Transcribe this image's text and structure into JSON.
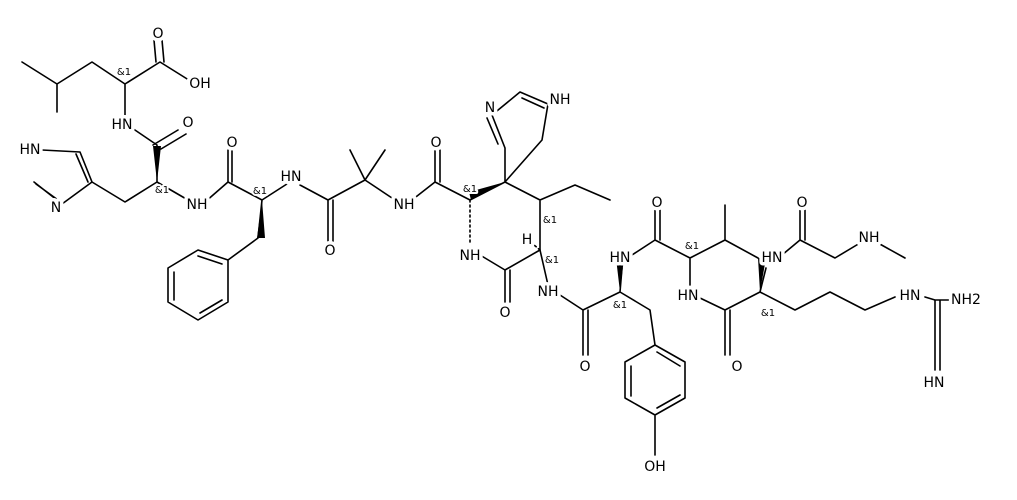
{
  "labels": [
    "OH",
    "O",
    "&1",
    "HN",
    "O",
    "HN",
    "N",
    "&1",
    "NH",
    "O",
    "&1",
    "HN",
    "O",
    "NH",
    "O",
    "&1",
    "N",
    "NH",
    "&1",
    "H",
    "&1",
    "NH",
    "O",
    "NH",
    "O",
    "&1",
    "HN",
    "O",
    "&1",
    "HN",
    "O",
    "NH",
    "HN",
    "&1",
    "O",
    "HN",
    "NH2",
    "HN",
    "OH"
  ]
}
